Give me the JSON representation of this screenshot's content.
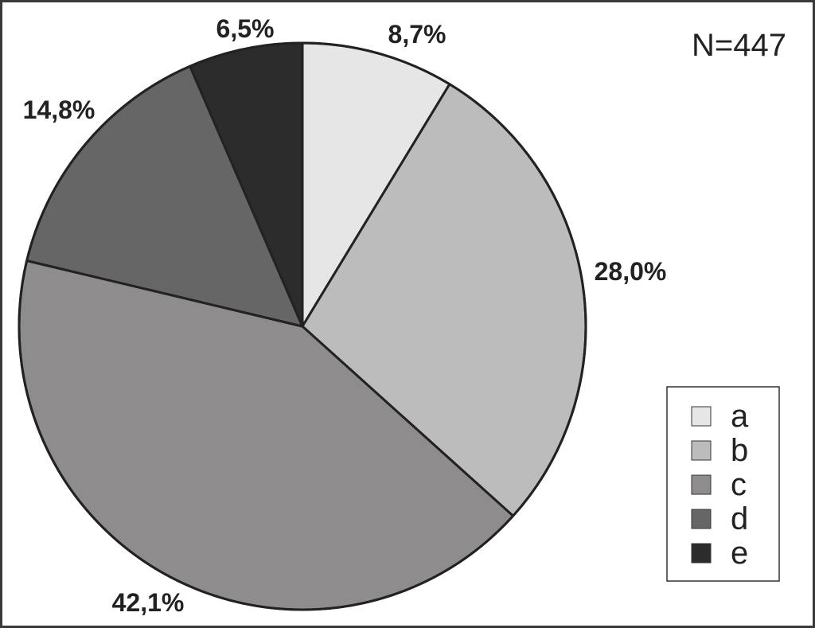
{
  "chart_data": {
    "type": "pie",
    "start_angle_deg": 0,
    "direction": "clockwise",
    "slices": [
      {
        "label": "a",
        "value": 8.7,
        "value_label": "8,7%",
        "color": "#e6e6e6"
      },
      {
        "label": "b",
        "value": 28.0,
        "value_label": "28,0%",
        "color": "#bcbcbc"
      },
      {
        "label": "c",
        "value": 42.1,
        "value_label": "42,1%",
        "color": "#8e8c8d"
      },
      {
        "label": "d",
        "value": 14.8,
        "value_label": "14,8%",
        "color": "#666666"
      },
      {
        "label": "e",
        "value": 6.5,
        "value_label": "6,5%",
        "color": "#2c2c2c"
      }
    ],
    "annotation": "N=447",
    "legend_position": "bottom-right"
  }
}
